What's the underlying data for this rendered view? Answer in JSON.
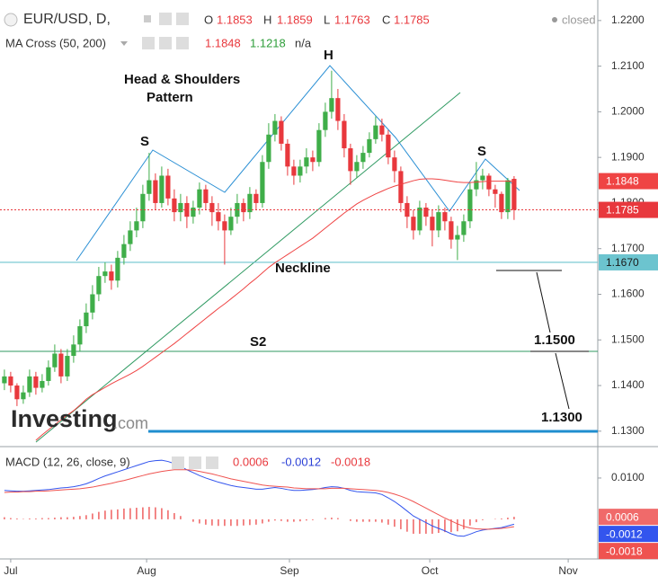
{
  "header": {
    "symbol": "EUR/USD, D,",
    "ohlc_keys": [
      "O",
      "H",
      "L",
      "C"
    ],
    "status": "closed",
    "indicator": "MA Cross (50, 200)",
    "ma_long": 1.1218,
    "ma_extra": "n/a"
  },
  "branding": {
    "brand": "Investing",
    "suffix": ".com"
  },
  "annotations": {
    "pattern_1": "Head & Shoulders",
    "pattern_2": "Pattern",
    "left_shoulder": "S",
    "head": "H",
    "right_shoulder": "S",
    "neckline": "Neckline",
    "s2": "S2",
    "target_1": "1.1500",
    "target_2": "1.1300"
  },
  "chart_data": [
    {
      "type": "candlestick",
      "xlim": [
        -0.7,
        94.3
      ],
      "xticks": [
        {
          "value": 1,
          "label": "Jul"
        },
        {
          "value": 22.6,
          "label": "Aug"
        },
        {
          "value": 45.3,
          "label": "Sep"
        },
        {
          "value": 67.6,
          "label": "Oct"
        },
        {
          "value": 89.6,
          "label": "Nov"
        }
      ],
      "ylim": [
        1.1276,
        1.2245
      ],
      "yticks": [
        {
          "value": 1.13,
          "label": "1.1300"
        },
        {
          "value": 1.14,
          "label": "1.1400"
        },
        {
          "value": 1.15,
          "label": "1.1500"
        },
        {
          "value": 1.16,
          "label": "1.1600"
        },
        {
          "value": 1.17,
          "label": "1.1700"
        },
        {
          "value": 1.18,
          "label": "1.1800"
        },
        {
          "value": 1.19,
          "label": "1.1900"
        },
        {
          "value": 1.2,
          "label": "1.2000"
        },
        {
          "value": 1.21,
          "label": "1.2100"
        },
        {
          "value": 1.22,
          "label": "1.2200"
        }
      ],
      "up_color": "#3fae49",
      "down_color": "#e8383d",
      "x": [
        0,
        1,
        2,
        3,
        4,
        5,
        6,
        7,
        8,
        9,
        10,
        11,
        12,
        13,
        14,
        15,
        16,
        17,
        18,
        19,
        20,
        21,
        22,
        23,
        24,
        25,
        26,
        27,
        28,
        29,
        30,
        31,
        32,
        33,
        34,
        35,
        36,
        37,
        38,
        39,
        40,
        41,
        42,
        43,
        44,
        45,
        46,
        47,
        48,
        49,
        50,
        51,
        52,
        53,
        54,
        55,
        56,
        57,
        58,
        59,
        60,
        61,
        62,
        63,
        64,
        65,
        66,
        67,
        68,
        69,
        70,
        71,
        72,
        73,
        74,
        75,
        76,
        77,
        78,
        79,
        80,
        81
      ],
      "open": [
        1.1405,
        1.142,
        1.14,
        1.137,
        1.1385,
        1.142,
        1.1395,
        1.141,
        1.144,
        1.147,
        1.142,
        1.1465,
        1.149,
        1.153,
        1.156,
        1.16,
        1.164,
        1.165,
        1.163,
        1.168,
        1.171,
        1.174,
        1.176,
        1.182,
        1.185,
        1.18,
        1.186,
        1.181,
        1.178,
        1.18,
        1.177,
        1.179,
        1.183,
        1.18,
        1.178,
        1.176,
        1.174,
        1.177,
        1.18,
        1.178,
        1.182,
        1.18,
        1.189,
        1.195,
        1.198,
        1.193,
        1.188,
        1.186,
        1.188,
        1.19,
        1.189,
        1.196,
        1.2,
        1.203,
        1.198,
        1.192,
        1.187,
        1.189,
        1.191,
        1.194,
        1.197,
        1.195,
        1.19,
        1.187,
        1.18,
        1.177,
        1.174,
        1.179,
        1.177,
        1.174,
        1.178,
        1.176,
        1.172,
        1.173,
        1.176,
        1.183,
        1.185,
        1.186,
        1.183,
        1.182,
        1.178,
        1.1853
      ],
      "high": [
        1.1435,
        1.143,
        1.1405,
        1.14,
        1.1435,
        1.143,
        1.1425,
        1.1455,
        1.149,
        1.148,
        1.148,
        1.151,
        1.1545,
        1.158,
        1.162,
        1.166,
        1.167,
        1.1665,
        1.1695,
        1.173,
        1.176,
        1.179,
        1.184,
        1.191,
        1.1865,
        1.188,
        1.1875,
        1.183,
        1.182,
        1.1815,
        1.1805,
        1.1845,
        1.184,
        1.1815,
        1.18,
        1.1775,
        1.179,
        1.182,
        1.181,
        1.1835,
        1.183,
        1.1905,
        1.1975,
        1.1995,
        1.199,
        1.194,
        1.1895,
        1.1895,
        1.192,
        1.1915,
        1.1975,
        1.202,
        1.209,
        1.205,
        1.1995,
        1.193,
        1.1905,
        1.1925,
        1.1955,
        1.199,
        1.1985,
        1.196,
        1.1915,
        1.188,
        1.1815,
        1.1785,
        1.1805,
        1.18,
        1.1785,
        1.1795,
        1.179,
        1.177,
        1.175,
        1.1775,
        1.1845,
        1.189,
        1.1875,
        1.1865,
        1.184,
        1.1825,
        1.1855,
        1.1859
      ],
      "low": [
        1.139,
        1.1385,
        1.1355,
        1.136,
        1.1375,
        1.138,
        1.1385,
        1.14,
        1.143,
        1.1405,
        1.141,
        1.145,
        1.1475,
        1.1515,
        1.1545,
        1.1585,
        1.1625,
        1.161,
        1.1615,
        1.1665,
        1.1695,
        1.1725,
        1.1745,
        1.1805,
        1.1785,
        1.179,
        1.1795,
        1.176,
        1.176,
        1.1745,
        1.1755,
        1.1775,
        1.1785,
        1.175,
        1.174,
        1.1665,
        1.173,
        1.1755,
        1.176,
        1.1765,
        1.1785,
        1.179,
        1.1875,
        1.1935,
        1.1915,
        1.186,
        1.184,
        1.1845,
        1.1865,
        1.187,
        1.188,
        1.1945,
        1.1985,
        1.196,
        1.19,
        1.184,
        1.1855,
        1.1875,
        1.19,
        1.193,
        1.1935,
        1.1885,
        1.1845,
        1.178,
        1.1745,
        1.172,
        1.173,
        1.175,
        1.1705,
        1.1725,
        1.174,
        1.17,
        1.1675,
        1.1715,
        1.1745,
        1.1815,
        1.183,
        1.1815,
        1.179,
        1.1765,
        1.1765,
        1.1763
      ],
      "close": [
        1.142,
        1.14,
        1.137,
        1.1385,
        1.142,
        1.1395,
        1.141,
        1.144,
        1.147,
        1.142,
        1.1465,
        1.149,
        1.153,
        1.156,
        1.16,
        1.164,
        1.165,
        1.163,
        1.168,
        1.171,
        1.174,
        1.176,
        1.182,
        1.185,
        1.18,
        1.186,
        1.181,
        1.178,
        1.18,
        1.177,
        1.179,
        1.183,
        1.18,
        1.178,
        1.176,
        1.174,
        1.177,
        1.18,
        1.178,
        1.182,
        1.18,
        1.189,
        1.195,
        1.198,
        1.193,
        1.188,
        1.186,
        1.188,
        1.19,
        1.189,
        1.196,
        1.2,
        1.203,
        1.198,
        1.192,
        1.187,
        1.189,
        1.191,
        1.194,
        1.197,
        1.195,
        1.19,
        1.187,
        1.18,
        1.177,
        1.174,
        1.179,
        1.177,
        1.174,
        1.178,
        1.176,
        1.172,
        1.173,
        1.176,
        1.183,
        1.185,
        1.186,
        1.183,
        1.182,
        1.178,
        1.185,
        1.1785
      ],
      "overlay": {
        "color": "#ef4444",
        "values": [
          null,
          null,
          null,
          null,
          null,
          1.128,
          1.1292,
          1.1303,
          1.1314,
          1.1325,
          1.1335,
          1.1345,
          1.1357,
          1.137,
          1.138,
          1.1388,
          1.1396,
          1.1404,
          1.1411,
          1.1418,
          1.1425,
          1.1433,
          1.1442,
          1.1452,
          1.1462,
          1.1472,
          1.1482,
          1.1492,
          1.1503,
          1.1514,
          1.1525,
          1.1536,
          1.1547,
          1.1558,
          1.1569,
          1.1579,
          1.159,
          1.1601,
          1.1612,
          1.1624,
          1.1635,
          1.1647,
          1.1659,
          1.1669,
          1.1678,
          1.1687,
          1.1696,
          1.1705,
          1.1714,
          1.1723,
          1.1734,
          1.1745,
          1.1756,
          1.1767,
          1.1778,
          1.1788,
          1.1798,
          1.1806,
          1.1813,
          1.182,
          1.1826,
          1.1832,
          1.1837,
          1.1841,
          1.1845,
          1.1849,
          1.1852,
          1.1853,
          1.1853,
          1.1852,
          1.185,
          1.1848,
          1.1846,
          1.1845,
          1.1845,
          1.1846,
          1.1847,
          1.1848,
          1.1848,
          1.1848,
          1.1848,
          1.1848
        ]
      },
      "last_price_line": "dotted",
      "price_labels": [
        {
          "value": 1.167,
          "label": "1.1670",
          "color": "#6cc4cf",
          "text_color": "#1a1a1a",
          "line": "solid"
        }
      ]
    },
    {
      "type": "macd",
      "title": "MACD (12, 26, close, 9)",
      "xlim": [
        -0.7,
        94.3
      ],
      "ylim": [
        -0.0096,
        0.0163
      ],
      "yticks": [
        {
          "value": 0.01,
          "label": "0.0100"
        }
      ],
      "x": [
        0,
        1,
        2,
        3,
        4,
        5,
        6,
        7,
        8,
        9,
        10,
        11,
        12,
        13,
        14,
        15,
        16,
        17,
        18,
        19,
        20,
        21,
        22,
        23,
        24,
        25,
        26,
        27,
        28,
        29,
        30,
        31,
        32,
        33,
        34,
        35,
        36,
        37,
        38,
        39,
        40,
        41,
        42,
        43,
        44,
        45,
        46,
        47,
        48,
        49,
        50,
        51,
        52,
        53,
        54,
        55,
        56,
        57,
        58,
        59,
        60,
        61,
        62,
        63,
        64,
        65,
        66,
        67,
        68,
        69,
        70,
        71,
        72,
        73,
        74,
        75,
        76,
        77,
        78,
        79,
        80,
        81
      ],
      "histogram": {
        "color": "#f06a6a",
        "values": [
          0.0005,
          0.0003,
          0.0002,
          0.0001,
          0.0002,
          0.0002,
          0.0003,
          0.0003,
          0.0004,
          0.0005,
          0.0005,
          0.0006,
          0.0008,
          0.001,
          0.0014,
          0.0018,
          0.0021,
          0.0023,
          0.0024,
          0.0026,
          0.0027,
          0.0028,
          0.0029,
          0.003,
          0.0029,
          0.0027,
          0.0022,
          0.0015,
          0.0008,
          0.0,
          -0.0006,
          -0.001,
          -0.0013,
          -0.0015,
          -0.0016,
          -0.0016,
          -0.0016,
          -0.0016,
          -0.0015,
          -0.0014,
          -0.0013,
          -0.001,
          -0.0006,
          -0.0003,
          -0.0004,
          -0.0006,
          -0.0006,
          -0.0005,
          -0.0003,
          -0.0002,
          0.0,
          0.0003,
          0.0004,
          0.0003,
          0.0,
          -0.0004,
          -0.0006,
          -0.0006,
          -0.0006,
          -0.0006,
          -0.0008,
          -0.0013,
          -0.0018,
          -0.0024,
          -0.003,
          -0.0035,
          -0.0035,
          -0.0035,
          -0.0035,
          -0.0033,
          -0.0031,
          -0.0031,
          -0.0029,
          -0.0024,
          -0.0015,
          -0.0007,
          -0.0002,
          0.0,
          0.0001,
          0.0002,
          0.0004,
          0.0006
        ]
      },
      "macd": {
        "color": "#3355ee",
        "values": [
          0.007,
          0.0069,
          0.0068,
          0.0068,
          0.0069,
          0.007,
          0.0071,
          0.0072,
          0.0074,
          0.0076,
          0.0077,
          0.0079,
          0.0082,
          0.0086,
          0.0092,
          0.0099,
          0.0105,
          0.011,
          0.0115,
          0.012,
          0.0125,
          0.013,
          0.0135,
          0.014,
          0.0142,
          0.0143,
          0.014,
          0.0135,
          0.0128,
          0.012,
          0.0113,
          0.0106,
          0.01,
          0.0095,
          0.009,
          0.0086,
          0.0082,
          0.0079,
          0.0077,
          0.0075,
          0.0073,
          0.0073,
          0.0075,
          0.0077,
          0.0075,
          0.0072,
          0.007,
          0.007,
          0.0071,
          0.0072,
          0.0074,
          0.0077,
          0.0079,
          0.0078,
          0.0075,
          0.007,
          0.0067,
          0.0066,
          0.0065,
          0.0064,
          0.006,
          0.0052,
          0.0043,
          0.0032,
          0.002,
          0.0008,
          0.0,
          -0.0008,
          -0.0016,
          -0.0022,
          -0.0028,
          -0.0035,
          -0.004,
          -0.0041,
          -0.0036,
          -0.003,
          -0.0026,
          -0.0024,
          -0.0022,
          -0.002,
          -0.0016,
          -0.0012
        ]
      },
      "signal": {
        "color": "#ef5350",
        "values": [
          0.0065,
          0.0066,
          0.0066,
          0.0067,
          0.0067,
          0.0068,
          0.0068,
          0.0069,
          0.007,
          0.0071,
          0.0072,
          0.0073,
          0.0074,
          0.0076,
          0.0078,
          0.0081,
          0.0084,
          0.0087,
          0.0091,
          0.0094,
          0.0098,
          0.0102,
          0.0106,
          0.011,
          0.0113,
          0.0116,
          0.0118,
          0.012,
          0.012,
          0.012,
          0.0119,
          0.0116,
          0.0113,
          0.011,
          0.0106,
          0.0102,
          0.0098,
          0.0095,
          0.0092,
          0.0089,
          0.0086,
          0.0083,
          0.0081,
          0.008,
          0.0079,
          0.0078,
          0.0076,
          0.0075,
          0.0074,
          0.0074,
          0.0074,
          0.0074,
          0.0075,
          0.0075,
          0.0075,
          0.0074,
          0.0073,
          0.0072,
          0.0071,
          0.007,
          0.0068,
          0.0065,
          0.0061,
          0.0056,
          0.005,
          0.0043,
          0.0035,
          0.0027,
          0.0019,
          0.0011,
          0.0003,
          -0.0004,
          -0.0011,
          -0.0017,
          -0.0021,
          -0.0023,
          -0.0024,
          -0.0024,
          -0.0023,
          -0.0022,
          -0.002,
          -0.0018
        ]
      }
    }
  ]
}
